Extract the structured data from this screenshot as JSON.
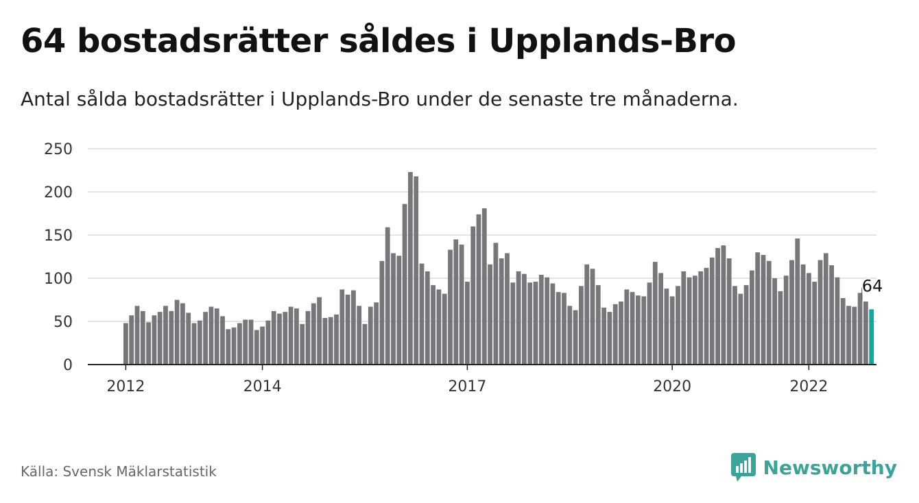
{
  "title": "64 bostadsrätter såldes i Upplands-Bro",
  "subtitle": "Antal sålda bostadsrätter i Upplands-Bro under de senaste tre månaderna.",
  "source": "Källa: Svensk Mäklarstatistik",
  "brand": {
    "name": "Newsworthy",
    "icon": "newsworthy-logo-icon",
    "color": "#3aa39a"
  },
  "colors": {
    "bar": "#77767b",
    "highlight": "#13a89e",
    "grid": "#dcdcdc",
    "axis": "#222222"
  },
  "chart_data": {
    "type": "bar",
    "title": "64 bostadsrätter såldes i Upplands-Bro",
    "subtitle": "Antal sålda bostadsrätter i Upplands-Bro under de senaste tre månaderna.",
    "xlabel": "",
    "ylabel": "",
    "ylim": [
      0,
      250
    ],
    "yticks": [
      0,
      50,
      100,
      150,
      200,
      250
    ],
    "xticks": [
      {
        "label": "2012",
        "index": 0
      },
      {
        "label": "2014",
        "index": 24
      },
      {
        "label": "2017",
        "index": 60
      },
      {
        "label": "2020",
        "index": 96
      },
      {
        "label": "2022",
        "index": 120
      }
    ],
    "grid": true,
    "legend": "none",
    "annotation": {
      "label": "64",
      "index": 131
    },
    "highlight_index": 131,
    "values": [
      48,
      57,
      68,
      62,
      49,
      57,
      61,
      68,
      62,
      75,
      71,
      60,
      48,
      51,
      61,
      67,
      65,
      56,
      41,
      43,
      48,
      52,
      52,
      40,
      44,
      51,
      62,
      59,
      61,
      67,
      65,
      47,
      62,
      71,
      78,
      54,
      55,
      58,
      87,
      81,
      86,
      68,
      47,
      67,
      72,
      120,
      159,
      129,
      126,
      186,
      223,
      218,
      117,
      108,
      92,
      87,
      82,
      133,
      145,
      139,
      96,
      160,
      174,
      181,
      116,
      141,
      123,
      129,
      95,
      108,
      105,
      95,
      96,
      104,
      101,
      94,
      84,
      83,
      68,
      63,
      91,
      116,
      111,
      92,
      66,
      61,
      70,
      73,
      87,
      84,
      80,
      79,
      95,
      119,
      106,
      88,
      79,
      91,
      108,
      101,
      103,
      108,
      112,
      124,
      135,
      138,
      123,
      91,
      82,
      92,
      109,
      130,
      127,
      120,
      100,
      85,
      103,
      121,
      146,
      116,
      106,
      96,
      121,
      129,
      115,
      101,
      77,
      68,
      67,
      83,
      73,
      64
    ]
  }
}
